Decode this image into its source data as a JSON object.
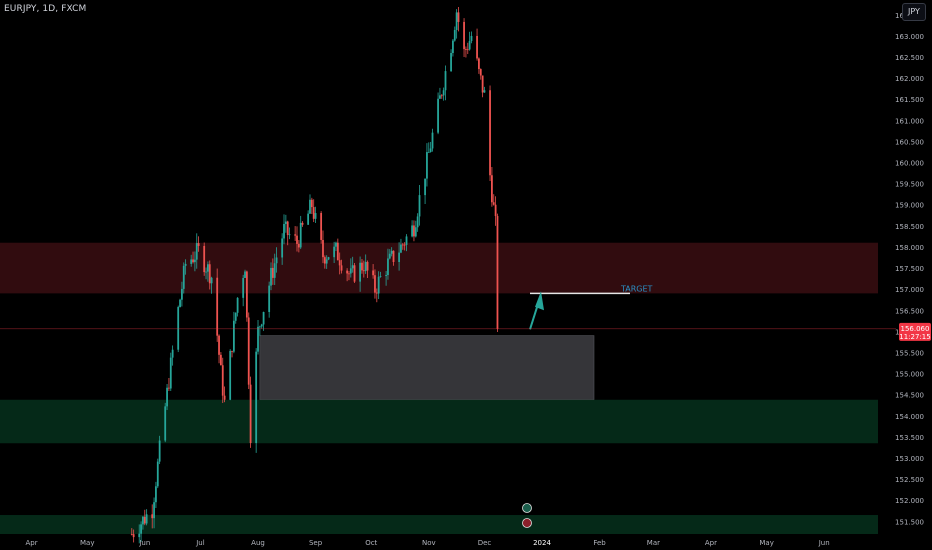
{
  "header": {
    "symbol_label": "EURJPY, 1D, FXCM",
    "currency_button": "JPY"
  },
  "price_tag": {
    "price": "156.060",
    "countdown": "11:27:15"
  },
  "annotation": {
    "target_label": "TARGET",
    "target_price": 156.9
  },
  "colors": {
    "up": "#26a69a",
    "down": "#ef5350",
    "resistance_zone": "#3a0e12",
    "support_zone": "#06301c",
    "gray_zone": "#3b3b3f",
    "arrow": "#26a69a",
    "price_tag": "#f23645"
  },
  "chart_data": {
    "type": "candlestick",
    "symbol": "EURJPY",
    "timeframe": "1D",
    "source": "FXCM",
    "currency": "JPY",
    "ylim": [
      151.2,
      163.85
    ],
    "y_ticks": [
      "151.500",
      "152.000",
      "152.500",
      "153.000",
      "153.500",
      "154.000",
      "154.500",
      "155.000",
      "155.500",
      "156.000",
      "156.500",
      "157.000",
      "157.500",
      "158.000",
      "158.500",
      "159.000",
      "159.500",
      "160.000",
      "160.500",
      "161.000",
      "161.500",
      "162.000",
      "162.500",
      "163.000",
      "163.500"
    ],
    "x_ticks": [
      "Apr",
      "May",
      "Jun",
      "Jul",
      "Aug",
      "Sep",
      "Oct",
      "Nov",
      "Dec",
      "2024",
      "Feb",
      "Mar",
      "Apr",
      "May",
      "Jun"
    ],
    "last_price": 156.06,
    "series_waypoints": [
      {
        "date": "2023-05-25",
        "price": 151.2
      },
      {
        "date": "2023-06-05",
        "price": 151.8
      },
      {
        "date": "2023-06-12",
        "price": 154.2
      },
      {
        "date": "2023-06-19",
        "price": 156.5
      },
      {
        "date": "2023-06-23",
        "price": 157.6
      },
      {
        "date": "2023-06-30",
        "price": 157.9
      },
      {
        "date": "2023-07-07",
        "price": 157.3
      },
      {
        "date": "2023-07-12",
        "price": 155.0
      },
      {
        "date": "2023-07-14",
        "price": 154.3
      },
      {
        "date": "2023-07-21",
        "price": 156.8
      },
      {
        "date": "2023-07-25",
        "price": 157.6
      },
      {
        "date": "2023-07-28",
        "price": 153.6
      },
      {
        "date": "2023-08-01",
        "price": 156.0
      },
      {
        "date": "2023-08-08",
        "price": 157.3
      },
      {
        "date": "2023-08-15",
        "price": 158.4
      },
      {
        "date": "2023-08-22",
        "price": 158.1
      },
      {
        "date": "2023-08-30",
        "price": 159.0
      },
      {
        "date": "2023-09-05",
        "price": 157.8
      },
      {
        "date": "2023-09-12",
        "price": 157.9
      },
      {
        "date": "2023-09-20",
        "price": 157.3
      },
      {
        "date": "2023-09-27",
        "price": 157.6
      },
      {
        "date": "2023-10-03",
        "price": 157.0
      },
      {
        "date": "2023-10-10",
        "price": 157.6
      },
      {
        "date": "2023-10-17",
        "price": 158.0
      },
      {
        "date": "2023-10-24",
        "price": 158.5
      },
      {
        "date": "2023-10-31",
        "price": 160.0
      },
      {
        "date": "2023-11-07",
        "price": 161.5
      },
      {
        "date": "2023-11-13",
        "price": 162.8
      },
      {
        "date": "2023-11-16",
        "price": 163.6
      },
      {
        "date": "2023-11-20",
        "price": 162.6
      },
      {
        "date": "2023-11-24",
        "price": 163.0
      },
      {
        "date": "2023-11-28",
        "price": 162.1
      },
      {
        "date": "2023-12-01",
        "price": 161.6
      },
      {
        "date": "2023-12-04",
        "price": 159.7
      },
      {
        "date": "2023-12-07",
        "price": 158.5
      },
      {
        "date": "2023-12-08",
        "price": 156.06
      }
    ],
    "zones": [
      {
        "name": "resistance",
        "from_price": 156.9,
        "to_price": 158.1,
        "from_date": "2023-03-15",
        "to_date": "2024-06-30"
      },
      {
        "name": "gray-box",
        "from_price": 154.38,
        "to_price": 155.9,
        "from_date": "2023-08-02",
        "to_date": "2024-01-29"
      },
      {
        "name": "support",
        "from_price": 153.35,
        "to_price": 154.38,
        "from_date": "2023-03-15",
        "to_date": "2024-06-30"
      },
      {
        "name": "support-low",
        "from_price": 151.2,
        "to_price": 151.65,
        "from_date": "2023-03-15",
        "to_date": "2024-06-30"
      }
    ]
  }
}
